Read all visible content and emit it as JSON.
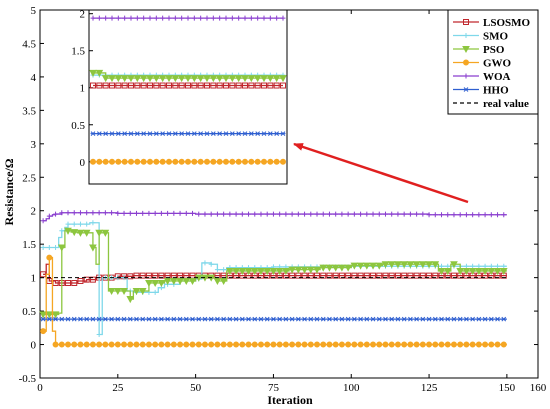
{
  "chart_data": {
    "type": "line",
    "xlabel": "Iteration",
    "ylabel": "Resistance/Ω",
    "xlim": [
      0,
      160
    ],
    "ylim": [
      -0.5,
      5
    ],
    "xticks": [
      0,
      25,
      50,
      75,
      100,
      125,
      150,
      160
    ],
    "yticks": [
      -0.5,
      0,
      0.5,
      1,
      1.5,
      2,
      2.5,
      3,
      3.5,
      4,
      4.5,
      5
    ],
    "legend_position": "top-right",
    "series": [
      {
        "name": "LSOSMO",
        "color": "#c0272d",
        "marker": "square",
        "x": [
          1,
          2,
          3,
          5,
          10,
          12,
          15,
          18,
          20,
          25,
          30,
          40,
          50,
          60,
          75,
          100,
          125,
          150
        ],
        "y": [
          1.05,
          1.2,
          0.95,
          0.92,
          0.92,
          0.95,
          0.97,
          1.0,
          1.0,
          1.02,
          1.03,
          1.03,
          1.03,
          1.03,
          1.03,
          1.03,
          1.03,
          1.03
        ]
      },
      {
        "name": "SMO",
        "color": "#7fd8ea",
        "marker": "plus",
        "x": [
          1,
          2,
          3,
          4,
          5,
          6,
          7,
          8,
          9,
          12,
          14,
          16,
          18,
          19,
          20,
          21,
          24,
          25,
          28,
          30,
          32,
          35,
          38,
          40,
          45,
          50,
          52,
          55,
          57,
          60,
          75,
          100,
          125,
          150
        ],
        "y": [
          1.45,
          1.45,
          1.45,
          1.45,
          1.45,
          1.6,
          1.7,
          1.75,
          1.8,
          1.8,
          1.8,
          1.82,
          1.82,
          0.15,
          1.0,
          1.0,
          1.0,
          1.0,
          0.8,
          0.78,
          0.78,
          0.78,
          0.85,
          0.9,
          0.95,
          0.98,
          1.22,
          1.2,
          1.12,
          1.15,
          1.16,
          1.17,
          1.17,
          1.17
        ]
      },
      {
        "name": "PSO",
        "color": "#8dc63f",
        "marker": "triangle-down",
        "x": [
          1,
          2,
          3,
          4,
          5,
          6,
          7,
          8,
          10,
          12,
          14,
          16,
          17,
          18,
          19,
          20,
          22,
          25,
          28,
          29,
          30,
          35,
          40,
          50,
          56,
          57,
          60,
          70,
          80,
          90,
          100,
          110,
          112,
          120,
          125,
          128,
          130,
          132,
          135,
          140,
          145,
          150
        ],
        "y": [
          0.45,
          0.45,
          0.45,
          0.45,
          0.45,
          0.47,
          1.45,
          1.7,
          1.68,
          1.67,
          1.67,
          1.67,
          1.45,
          1.2,
          1.67,
          1.67,
          0.8,
          0.8,
          0.8,
          0.68,
          0.8,
          0.92,
          0.95,
          1.0,
          1.0,
          0.95,
          1.1,
          1.1,
          1.12,
          1.15,
          1.18,
          1.2,
          1.2,
          1.2,
          1.2,
          1.1,
          1.1,
          1.2,
          1.1,
          1.1,
          1.1,
          1.1
        ]
      },
      {
        "name": "GWO",
        "color": "#f5a623",
        "marker": "circle",
        "x": [
          1,
          2,
          3,
          4,
          5,
          6,
          8,
          10,
          25,
          50,
          75,
          100,
          125,
          150
        ],
        "y": [
          0.2,
          1.05,
          1.3,
          0.2,
          0.0,
          0.0,
          0.0,
          0.0,
          0.0,
          0.0,
          0.0,
          0.0,
          0.0,
          0.0
        ]
      },
      {
        "name": "WOA",
        "color": "#8a3fcf",
        "marker": "plus",
        "x": [
          1,
          2,
          3,
          4,
          5,
          7,
          10,
          25,
          50,
          75,
          100,
          125,
          150
        ],
        "y": [
          1.85,
          1.88,
          1.92,
          1.94,
          1.95,
          1.97,
          1.97,
          1.96,
          1.95,
          1.95,
          1.95,
          1.94,
          1.94
        ]
      },
      {
        "name": "HHO",
        "color": "#2f5fd0",
        "marker": "asterisk",
        "x": [
          1,
          3,
          5,
          10,
          25,
          50,
          75,
          100,
          125,
          150
        ],
        "y": [
          0.38,
          0.38,
          0.38,
          0.38,
          0.38,
          0.38,
          0.38,
          0.38,
          0.38,
          0.38
        ]
      },
      {
        "name": "real value",
        "color": "#000000",
        "marker": "none",
        "dashed": true,
        "x": [
          0,
          150
        ],
        "y": [
          1.0,
          1.0
        ]
      }
    ],
    "inset": {
      "ylim": [
        -0.3,
        2.05
      ],
      "yticks": [
        0,
        0.5,
        1,
        1.5,
        2
      ],
      "series": [
        {
          "name": "LSOSMO",
          "value": 1.03
        },
        {
          "name": "SMO",
          "value": 1.17
        },
        {
          "name": "PSO",
          "value": 1.13,
          "start_value": 1.2
        },
        {
          "name": "GWO",
          "value": 0.0
        },
        {
          "name": "WOA",
          "value": 1.94
        },
        {
          "name": "HHO",
          "value": 0.38
        }
      ]
    }
  }
}
